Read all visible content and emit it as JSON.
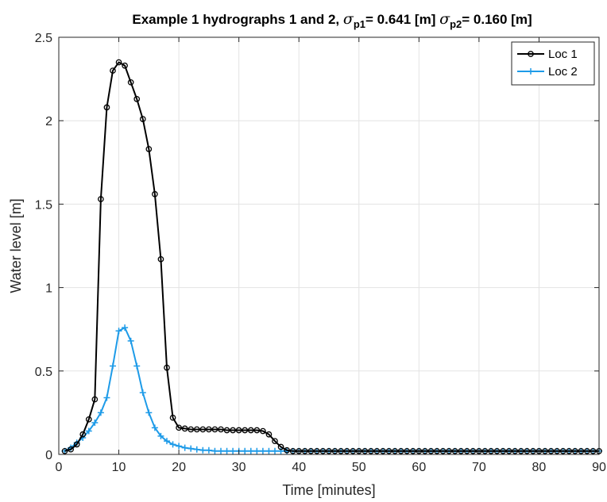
{
  "chart_data": {
    "type": "line",
    "title": "Example 1 hydrographs 1 and 2, σp1= 0.641 [m] σp2= 0.160 [m]",
    "title_parts": {
      "prefix": "Example 1 hydrographs 1 and 2, ",
      "sigma1_symbol": "σ",
      "sigma1_sub": "p1",
      "sigma1_value": "= 0.641 [m] ",
      "sigma2_symbol": "σ",
      "sigma2_sub": "p2",
      "sigma2_value": "= 0.160 [m]"
    },
    "xlabel": "Time [minutes]",
    "ylabel": "Water level [m]",
    "xlim": [
      0,
      90
    ],
    "ylim": [
      0,
      2.5
    ],
    "xticks": [
      0,
      10,
      20,
      30,
      40,
      50,
      60,
      70,
      80,
      90
    ],
    "yticks": [
      0,
      0.5,
      1,
      1.5,
      2,
      2.5
    ],
    "xtick_labels": [
      "0",
      "10",
      "20",
      "30",
      "40",
      "50",
      "60",
      "70",
      "80",
      "90"
    ],
    "ytick_labels": [
      "0",
      "0.5",
      "1",
      "1.5",
      "2",
      "2.5"
    ],
    "grid": true,
    "legend_position": "top-right",
    "x": [
      1,
      2,
      3,
      4,
      5,
      6,
      7,
      8,
      9,
      10,
      11,
      12,
      13,
      14,
      15,
      16,
      17,
      18,
      19,
      20,
      21,
      22,
      23,
      24,
      25,
      26,
      27,
      28,
      29,
      30,
      31,
      32,
      33,
      34,
      35,
      36,
      37,
      38,
      39,
      40,
      41,
      42,
      43,
      44,
      45,
      46,
      47,
      48,
      49,
      50,
      51,
      52,
      53,
      54,
      55,
      56,
      57,
      58,
      59,
      60,
      61,
      62,
      63,
      64,
      65,
      66,
      67,
      68,
      69,
      70,
      71,
      72,
      73,
      74,
      75,
      76,
      77,
      78,
      79,
      80,
      81,
      82,
      83,
      84,
      85,
      86,
      87,
      88,
      89,
      90
    ],
    "series": [
      {
        "name": "Loc 1",
        "color": "#000000",
        "marker": "circle",
        "values": [
          0.02,
          0.03,
          0.06,
          0.12,
          0.21,
          0.33,
          1.53,
          2.08,
          2.3,
          2.35,
          2.33,
          2.23,
          2.13,
          2.01,
          1.83,
          1.56,
          1.17,
          0.52,
          0.22,
          0.16,
          0.155,
          0.15,
          0.15,
          0.15,
          0.15,
          0.15,
          0.15,
          0.145,
          0.145,
          0.145,
          0.145,
          0.145,
          0.145,
          0.14,
          0.12,
          0.08,
          0.045,
          0.025,
          0.02,
          0.02,
          0.02,
          0.02,
          0.02,
          0.02,
          0.02,
          0.02,
          0.02,
          0.02,
          0.02,
          0.02,
          0.02,
          0.02,
          0.02,
          0.02,
          0.02,
          0.02,
          0.02,
          0.02,
          0.02,
          0.02,
          0.02,
          0.02,
          0.02,
          0.02,
          0.02,
          0.02,
          0.02,
          0.02,
          0.02,
          0.02,
          0.02,
          0.02,
          0.02,
          0.02,
          0.02,
          0.02,
          0.02,
          0.02,
          0.02,
          0.02,
          0.02,
          0.02,
          0.02,
          0.02,
          0.02,
          0.02,
          0.02,
          0.02,
          0.02,
          0.02
        ]
      },
      {
        "name": "Loc 2",
        "color": "#1e9be8",
        "marker": "plus",
        "values": [
          0.02,
          0.04,
          0.07,
          0.1,
          0.14,
          0.19,
          0.25,
          0.34,
          0.53,
          0.74,
          0.76,
          0.68,
          0.53,
          0.37,
          0.25,
          0.16,
          0.11,
          0.08,
          0.06,
          0.05,
          0.04,
          0.035,
          0.03,
          0.025,
          0.025,
          0.02,
          0.02,
          0.02,
          0.02,
          0.02,
          0.02,
          0.02,
          0.02,
          0.02,
          0.02,
          0.02,
          0.02,
          0.02,
          0.02,
          0.02,
          0.02,
          0.02,
          0.02,
          0.02,
          0.02,
          0.02,
          0.02,
          0.02,
          0.02,
          0.02,
          0.02,
          0.02,
          0.02,
          0.02,
          0.02,
          0.02,
          0.02,
          0.02,
          0.02,
          0.02,
          0.02,
          0.02,
          0.02,
          0.02,
          0.02,
          0.02,
          0.02,
          0.02,
          0.02,
          0.02,
          0.02,
          0.02,
          0.02,
          0.02,
          0.02,
          0.02,
          0.02,
          0.02,
          0.02,
          0.02,
          0.02,
          0.02,
          0.02,
          0.02,
          0.02,
          0.02,
          0.02,
          0.02,
          0.02,
          0.02
        ]
      }
    ]
  }
}
